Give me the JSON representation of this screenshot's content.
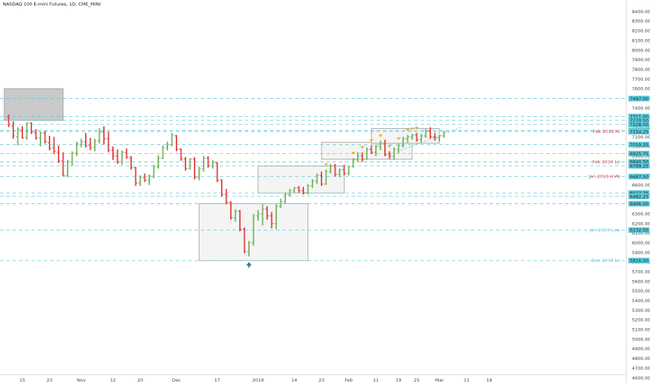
{
  "header": {
    "title": "NASDAQ 100 E-mini Futures, 1D, CME_MINI"
  },
  "colors": {
    "up": "#7cb86a",
    "down": "#e34b4b",
    "level": "#5fc8d6",
    "label_bg": "#5fc8d6",
    "red_text": "#e24a4a",
    "cyan_text": "#5fc8d6",
    "box_fill": "#f4f4f4",
    "box_stroke": "#999999",
    "gray_box_fill": "#c9c9c9",
    "marker": "#f0b429",
    "arrow": "#2b7a8c"
  },
  "chart_data": {
    "type": "ohlc",
    "title": "NASDAQ 100 E-mini Futures, 1D, CME_MINI",
    "y_axis": {
      "range": [
        4560,
        8520
      ],
      "ticks": [
        8400,
        8300,
        8200,
        8100,
        8000,
        7900,
        7800,
        7700,
        7600,
        7500,
        7400,
        7300,
        7200,
        7100,
        7000,
        6900,
        6800,
        6700,
        6600,
        6500,
        6400,
        6300,
        6200,
        6100,
        6000,
        5900,
        5800,
        5700,
        5600,
        5500,
        5400,
        5300,
        5200,
        5100,
        5000,
        4900,
        4800,
        4700,
        4600
      ],
      "tick_labels": [
        "8400.00",
        "8300.00",
        "8200.00",
        "8100.00",
        "8000.00",
        "7900.00",
        "7800.00",
        "7700.00",
        "7600.00",
        "7500.00",
        "7400.00",
        "7300.00",
        "7200.00",
        "7100.00",
        "7000.00",
        "6900.00",
        "6800.00",
        "6700.00",
        "6600.00",
        "6500.00",
        "6400.00",
        "6300.00",
        "6200.00",
        "6100.00",
        "6000.00",
        "5900.00",
        "5800.00",
        "5700.00",
        "5600.00",
        "5500.00",
        "5400.00",
        "5300.00",
        "5200.00",
        "5100.00",
        "5000.00",
        "4900.00",
        "4800.00",
        "4700.00",
        "4600.00"
      ]
    },
    "x_axis": {
      "range": [
        -1,
        117
      ],
      "tick_labels": [
        {
          "label": "15",
          "bar": 3
        },
        {
          "label": "23",
          "bar": 9
        },
        {
          "label": "Nov",
          "bar": 16
        },
        {
          "label": "12",
          "bar": 23
        },
        {
          "label": "20",
          "bar": 29
        },
        {
          "label": "Dec",
          "bar": 37
        },
        {
          "label": "17",
          "bar": 46
        },
        {
          "label": "2019",
          "bar": 55
        },
        {
          "label": "14",
          "bar": 63
        },
        {
          "label": "23",
          "bar": 69
        },
        {
          "label": "Feb",
          "bar": 75
        },
        {
          "label": "11",
          "bar": 81
        },
        {
          "label": "19",
          "bar": 86
        },
        {
          "label": "25",
          "bar": 90
        },
        {
          "label": "Mar",
          "bar": 95
        },
        {
          "label": "11",
          "bar": 101
        },
        {
          "label": "19",
          "bar": 106
        }
      ]
    },
    "levels": [
      {
        "value": 7497.0,
        "label": "7497.00"
      },
      {
        "value": 7311.0,
        "label": "7311.00"
      },
      {
        "value": 7270.5,
        "label": "7270.50"
      },
      {
        "value": 7228.5,
        "label": "7228.50"
      },
      {
        "value": 7164.5,
        "label": "7164.50"
      },
      {
        "value": 7154.25,
        "label": "7154.25"
      },
      {
        "value": 7019.25,
        "label": "7019.25"
      },
      {
        "value": 6925.75,
        "label": "6925.75"
      },
      {
        "value": 6840.5,
        "label": "6840.50"
      },
      {
        "value": 6799.25,
        "label": "6799.25"
      },
      {
        "value": 6687.5,
        "label": "6687.50"
      },
      {
        "value": 6517.25,
        "label": "6517.25"
      },
      {
        "value": 6482.25,
        "label": "6482.25"
      },
      {
        "value": 6406.0,
        "label": "6406.00"
      },
      {
        "value": 6132.5,
        "label": "6132.50"
      },
      {
        "value": 5816.5,
        "label": "5816.50"
      }
    ],
    "annotations": [
      {
        "text": "Feb 2019 Hi",
        "value": 7154.25,
        "color": "red"
      },
      {
        "text": "Feb 2019 Lo",
        "value": 6840.5,
        "color": "red"
      },
      {
        "text": "Jan 2019 HVN",
        "value": 6687.5,
        "color": "red"
      },
      {
        "text": "Jan 2019 Low",
        "value": 6132.5,
        "color": "cyan"
      },
      {
        "text": "Dec 2018 Lo",
        "value": 5816.5,
        "color": "cyan"
      }
    ],
    "boxes": [
      {
        "x0": -1,
        "x1": 12,
        "y0": 7270,
        "y1": 7600,
        "style": "gray"
      },
      {
        "x0": 42,
        "x1": 66,
        "y0": 5816,
        "y1": 6406,
        "style": "light"
      },
      {
        "x0": 55,
        "x1": 74,
        "y0": 6517,
        "y1": 6797,
        "style": "light"
      },
      {
        "x0": 69,
        "x1": 89,
        "y0": 6868,
        "y1": 7044,
        "style": "light"
      },
      {
        "x0": 80,
        "x1": 95,
        "y0": 7033,
        "y1": 7187,
        "style": "light"
      }
    ],
    "markers": [
      70,
      76,
      78,
      80,
      82,
      84,
      86,
      88,
      89,
      90
    ],
    "bars": [
      [
        7310,
        7330,
        7200,
        7230
      ],
      [
        7215,
        7260,
        7080,
        7110
      ],
      [
        7100,
        7200,
        7010,
        7180
      ],
      [
        7175,
        7210,
        7080,
        7090
      ],
      [
        7095,
        7250,
        7070,
        7240
      ],
      [
        7245,
        7250,
        7130,
        7150
      ],
      [
        7140,
        7180,
        7070,
        7090
      ],
      [
        7090,
        7150,
        7000,
        7140
      ],
      [
        7140,
        7160,
        7030,
        7050
      ],
      [
        7040,
        7110,
        6960,
        6980
      ],
      [
        6990,
        7100,
        6920,
        6950
      ],
      [
        6940,
        7010,
        6830,
        6850
      ],
      [
        6850,
        6940,
        6690,
        6700
      ],
      [
        6700,
        6860,
        6680,
        6840
      ],
      [
        6840,
        6950,
        6800,
        6930
      ],
      [
        6930,
        7050,
        6900,
        7030
      ],
      [
        7020,
        7080,
        6990,
        7050
      ],
      [
        7050,
        7140,
        6990,
        7010
      ],
      [
        7010,
        7090,
        6960,
        6990
      ],
      [
        6990,
        7080,
        6950,
        7060
      ],
      [
        7060,
        7190,
        7030,
        7150
      ],
      [
        7150,
        7210,
        7020,
        7080
      ],
      [
        7080,
        7150,
        6940,
        6960
      ],
      [
        6960,
        7000,
        6860,
        6900
      ],
      [
        6900,
        6970,
        6820,
        6840
      ],
      [
        6840,
        6960,
        6810,
        6940
      ],
      [
        6940,
        6980,
        6870,
        6890
      ],
      [
        6880,
        6900,
        6760,
        6780
      ],
      [
        6780,
        6790,
        6590,
        6620
      ],
      [
        6620,
        6700,
        6590,
        6680
      ],
      [
        6680,
        6720,
        6630,
        6650
      ],
      [
        6650,
        6710,
        6600,
        6690
      ],
      [
        6690,
        6810,
        6670,
        6790
      ],
      [
        6790,
        6910,
        6770,
        6880
      ],
      [
        6880,
        7010,
        6870,
        6990
      ],
      [
        6990,
        7050,
        6960,
        7020
      ],
      [
        7020,
        7140,
        7000,
        7120
      ],
      [
        7110,
        7120,
        6950,
        6970
      ],
      [
        6970,
        6980,
        6850,
        6870
      ],
      [
        6870,
        6890,
        6750,
        6770
      ],
      [
        6770,
        6880,
        6760,
        6870
      ],
      [
        6870,
        6890,
        6660,
        6680
      ],
      [
        6680,
        6790,
        6650,
        6770
      ],
      [
        6770,
        6900,
        6740,
        6880
      ],
      [
        6880,
        6900,
        6780,
        6800
      ],
      [
        6800,
        6860,
        6770,
        6830
      ],
      [
        6830,
        6840,
        6630,
        6650
      ],
      [
        6650,
        6660,
        6480,
        6500
      ],
      [
        6500,
        6560,
        6400,
        6420
      ],
      [
        6420,
        6430,
        6240,
        6260
      ],
      [
        6260,
        6350,
        6220,
        6330
      ],
      [
        6330,
        6340,
        6120,
        6140
      ],
      [
        6140,
        6160,
        5890,
        5910
      ],
      [
        5910,
        6020,
        5860,
        6000
      ],
      [
        6000,
        6300,
        5970,
        6280
      ],
      [
        6280,
        6340,
        6230,
        6300
      ],
      [
        6300,
        6400,
        6180,
        6350
      ],
      [
        6350,
        6380,
        6240,
        6280
      ],
      [
        6280,
        6320,
        6150,
        6200
      ],
      [
        6200,
        6400,
        6140,
        6380
      ],
      [
        6380,
        6460,
        6360,
        6430
      ],
      [
        6430,
        6520,
        6410,
        6500
      ],
      [
        6500,
        6560,
        6480,
        6540
      ],
      [
        6540,
        6580,
        6520,
        6570
      ],
      [
        6570,
        6590,
        6520,
        6540
      ],
      [
        6540,
        6580,
        6500,
        6520
      ],
      [
        6520,
        6610,
        6500,
        6590
      ],
      [
        6590,
        6660,
        6570,
        6640
      ],
      [
        6640,
        6720,
        6610,
        6700
      ],
      [
        6700,
        6740,
        6590,
        6610
      ],
      [
        6610,
        6760,
        6600,
        6740
      ],
      [
        6740,
        6820,
        6720,
        6800
      ],
      [
        6800,
        6820,
        6690,
        6710
      ],
      [
        6710,
        6770,
        6680,
        6760
      ],
      [
        6760,
        6810,
        6700,
        6720
      ],
      [
        6720,
        6800,
        6700,
        6790
      ],
      [
        6790,
        6880,
        6780,
        6860
      ],
      [
        6860,
        6940,
        6840,
        6900
      ],
      [
        6900,
        6940,
        6840,
        6870
      ],
      [
        6870,
        6990,
        6860,
        6970
      ],
      [
        6970,
        7010,
        6920,
        6940
      ],
      [
        6940,
        7020,
        6900,
        7000
      ],
      [
        7000,
        7060,
        6960,
        7030
      ],
      [
        7030,
        7070,
        6900,
        6920
      ],
      [
        6920,
        6950,
        6870,
        6900
      ],
      [
        6900,
        6990,
        6860,
        6970
      ],
      [
        6970,
        7030,
        6930,
        7010
      ],
      [
        7010,
        7100,
        6990,
        7080
      ],
      [
        7080,
        7120,
        7040,
        7100
      ],
      [
        7100,
        7130,
        7070,
        7120
      ],
      [
        7120,
        7140,
        7050,
        7070
      ],
      [
        7070,
        7130,
        7040,
        7110
      ],
      [
        7110,
        7180,
        7090,
        7160
      ],
      [
        7160,
        7200,
        7080,
        7100
      ],
      [
        7100,
        7140,
        7060,
        7090
      ],
      [
        7090,
        7120,
        7050,
        7110
      ],
      [
        7110,
        7160,
        7090,
        7150
      ]
    ]
  }
}
